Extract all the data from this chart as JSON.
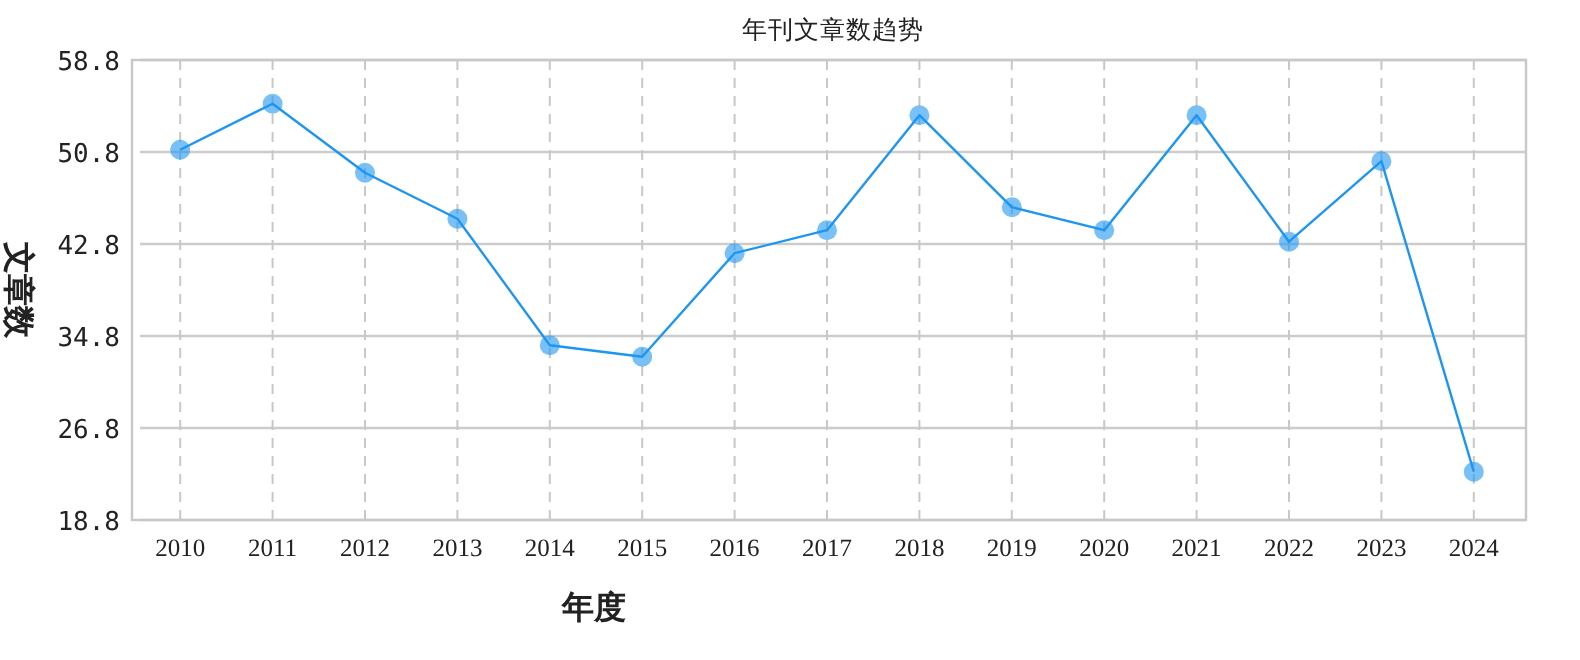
{
  "chart_data": {
    "type": "line",
    "title": "年刊文章数趋势",
    "xlabel": "年度",
    "ylabel": "文章数",
    "categories": [
      "2010",
      "2011",
      "2012",
      "2013",
      "2014",
      "2015",
      "2016",
      "2017",
      "2018",
      "2019",
      "2020",
      "2021",
      "2022",
      "2023",
      "2024"
    ],
    "series": [
      {
        "color": "#1e96f0",
        "values": [
          51,
          55,
          49,
          45,
          34,
          33,
          42,
          44,
          54,
          46,
          44,
          54,
          43,
          50,
          23
        ]
      }
    ],
    "ylim": [
      18.8,
      58.8
    ],
    "yticks": [
      18.8,
      26.8,
      34.8,
      42.8,
      50.8,
      58.8
    ],
    "grid": true,
    "marker": "circle",
    "line_style": "solid"
  }
}
